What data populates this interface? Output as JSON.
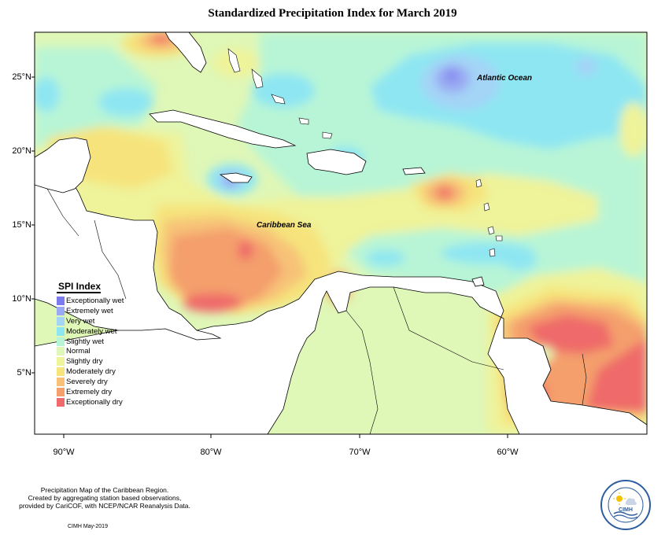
{
  "title": "Standardized Precipitation Index for March 2019",
  "labels": {
    "atlantic": "Atlantic Ocean",
    "caribbean": "Caribbean Sea"
  },
  "axes": {
    "lat_ticks": [
      "25°N",
      "20°N",
      "15°N",
      "10°N",
      "5°N"
    ],
    "lon_ticks": [
      "90°W",
      "80°W",
      "70°W",
      "60°W"
    ]
  },
  "legend": {
    "title": "SPI Index",
    "items": [
      {
        "label": "Exceptionally wet",
        "color": "#7b7bef"
      },
      {
        "label": "Extremely wet",
        "color": "#9aa9f3"
      },
      {
        "label": "Very wet",
        "color": "#a4d4f6"
      },
      {
        "label": "Moderately wet",
        "color": "#8ee6f2"
      },
      {
        "label": "Slightly wet",
        "color": "#b8f5d6"
      },
      {
        "label": "Normal",
        "color": "#dff7b7"
      },
      {
        "label": "Slightly dry",
        "color": "#eff39a"
      },
      {
        "label": "Moderately dry",
        "color": "#f6e37c"
      },
      {
        "label": "Severely dry",
        "color": "#f7c278"
      },
      {
        "label": "Extremely dry",
        "color": "#f49f6c"
      },
      {
        "label": "Exceptionally dry",
        "color": "#ef6a6a"
      }
    ]
  },
  "footer": {
    "line1": "Precipitation Map of the Caribbean Region.",
    "line2": "Created by aggregating station based observations,",
    "line3": "provided by CariCOF, with NCEP/NCAR Reanalysis Data.",
    "credit": "CIMH May-2019"
  },
  "logo": {
    "text": "CIMH"
  }
}
